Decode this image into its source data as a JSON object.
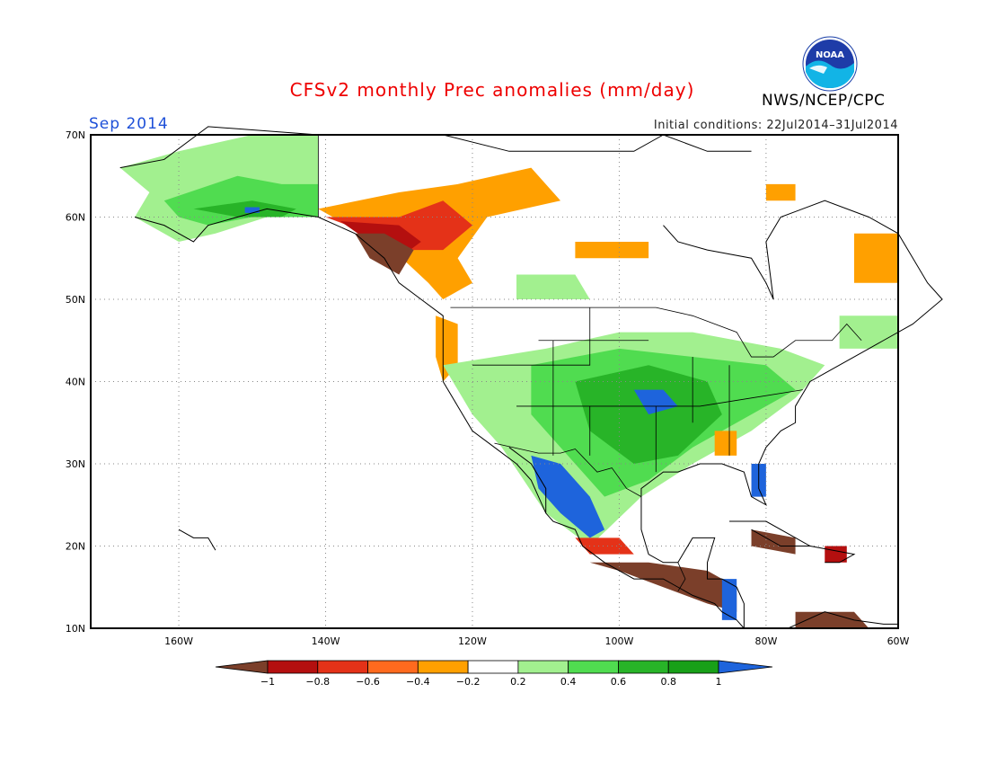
{
  "title": "CFSv2 monthly Prec anomalies (mm/day)",
  "valid_month": "Sep 2014",
  "initial_conditions": "Initial conditions: 22Jul2014–31Jul2014",
  "agency": "NWS/NCEP/CPC",
  "logo_text": "NOAA",
  "map": {
    "lat_ticks": [
      "70N",
      "60N",
      "50N",
      "40N",
      "30N",
      "20N",
      "10N"
    ],
    "lon_ticks": [
      "160W",
      "140W",
      "120W",
      "100W",
      "80W",
      "60W"
    ],
    "lat_range": [
      10,
      70
    ],
    "lon_range": [
      -172,
      -62
    ],
    "grid": "dotted"
  },
  "colorbar": {
    "labels": [
      "−1",
      "−0.8",
      "−0.6",
      "−0.4",
      "−0.2",
      "0.2",
      "0.4",
      "0.6",
      "0.8",
      "1"
    ],
    "colors": [
      "#7b3f2a",
      "#b40f0f",
      "#e43218",
      "#ff6a1e",
      "#ffa000",
      "#ffffff",
      "#a2f08f",
      "#50dc50",
      "#28b428",
      "#18a018",
      "#1e64dc"
    ]
  },
  "colors": {
    "dry_extreme": "#7b3f2a",
    "dry_strong": "#b40f0f",
    "dry_moderate": "#e43218",
    "dry_light": "#ffa000",
    "wet_light": "#a2f08f",
    "wet_moderate": "#50dc50",
    "wet_strong": "#28b428",
    "wet_extreme": "#1e64dc"
  }
}
